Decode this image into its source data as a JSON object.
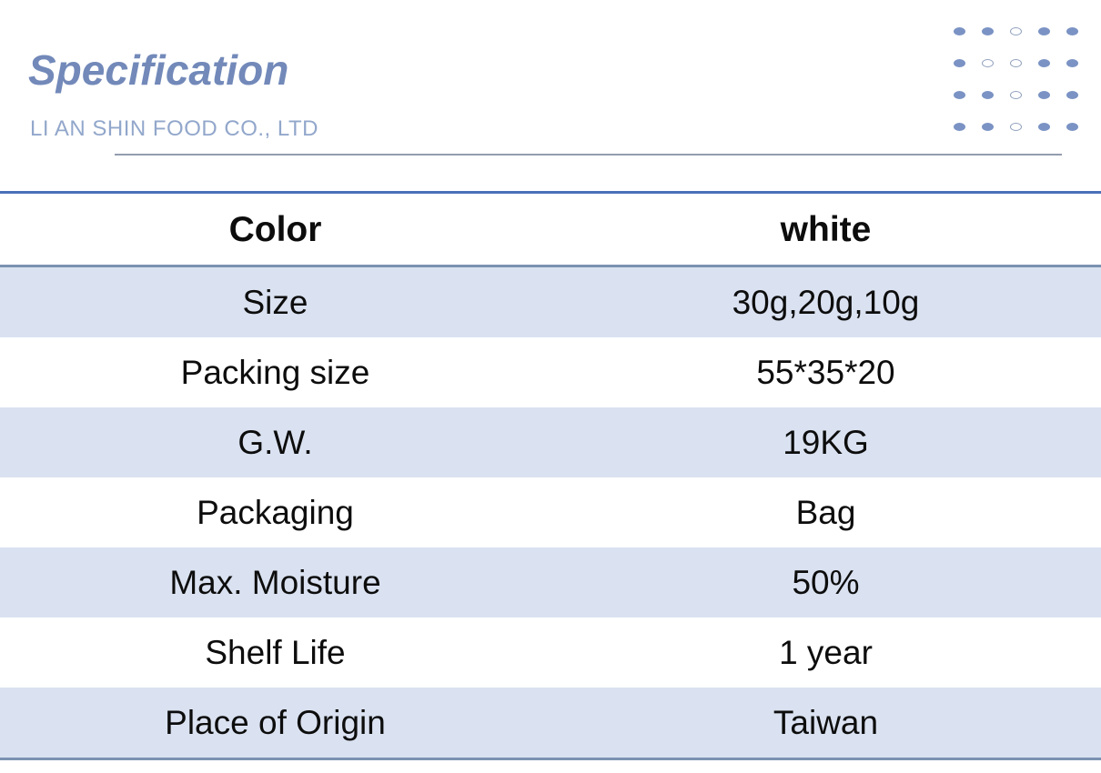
{
  "header": {
    "title": "Specification",
    "subtitle": "LI AN SHIN FOOD CO., LTD"
  },
  "decor": {
    "dot_rows": [
      [
        "f",
        "f",
        "o",
        "f",
        "f"
      ],
      [
        "f",
        "o",
        "o",
        "f",
        "f"
      ],
      [
        "f",
        "f",
        "o",
        "f",
        "f"
      ],
      [
        "f",
        "f",
        "o",
        "f",
        "f"
      ]
    ]
  },
  "colors": {
    "title": "#7289b9",
    "subtitle": "#92a7cb",
    "underline": "#929cae",
    "row_band": "#dae2f1",
    "table_top_border": "#4a70b8",
    "table_inner_border": "#7b92b1",
    "dot_filled": "#7b93c4",
    "dot_hollow_outline": "#8fa0bd",
    "text": "#0d0d0d"
  },
  "table": {
    "header_row": {
      "label": "Color",
      "value": "white"
    },
    "rows": [
      {
        "label": "Size",
        "value": "30g,20g,10g"
      },
      {
        "label": "Packing size",
        "value": "55*35*20"
      },
      {
        "label": "G.W.",
        "value": "19KG"
      },
      {
        "label": "Packaging",
        "value": "Bag"
      },
      {
        "label": "Max. Moisture",
        "value": "50%"
      },
      {
        "label": "Shelf Life",
        "value": "1 year"
      },
      {
        "label": "Place of Origin",
        "value": "Taiwan"
      }
    ]
  }
}
